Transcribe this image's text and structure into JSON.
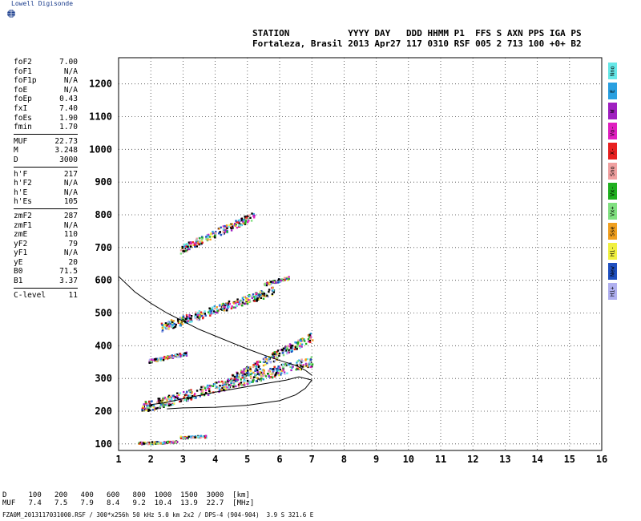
{
  "logo": {
    "text": "Lowell Digisonde",
    "icon": "globe-icon",
    "color": "#1a3c8c"
  },
  "header": {
    "line1": "STATION           YYYY DAY   DDD HHMM P1  FFS S AXN PPS IGA PS",
    "line2": "Fortaleza, Brasil 2013 Apr27 117 0310 RSF 005 2 713 100 +0+ B2"
  },
  "params": {
    "group1": [
      {
        "label": "foF2",
        "value": "7.00"
      },
      {
        "label": "foF1",
        "value": "N/A"
      },
      {
        "label": "foF1p",
        "value": "N/A"
      },
      {
        "label": "foE",
        "value": "N/A"
      },
      {
        "label": "foEp",
        "value": "0.43"
      },
      {
        "label": "fxI",
        "value": "7.40"
      },
      {
        "label": "foEs",
        "value": "1.90"
      },
      {
        "label": "fmin",
        "value": "1.70"
      }
    ],
    "group2": [
      {
        "label": "MUF",
        "value": "22.73"
      },
      {
        "label": "M",
        "value": "3.248"
      },
      {
        "label": "D",
        "value": "3000"
      }
    ],
    "group3": [
      {
        "label": "h'F",
        "value": "217"
      },
      {
        "label": "h'F2",
        "value": "N/A"
      },
      {
        "label": "h'E",
        "value": "N/A"
      },
      {
        "label": "h'Es",
        "value": "105"
      }
    ],
    "group4": [
      {
        "label": "zmF2",
        "value": "287"
      },
      {
        "label": "zmF1",
        "value": "N/A"
      },
      {
        "label": "zmE",
        "value": "110"
      },
      {
        "label": "yF2",
        "value": "79"
      },
      {
        "label": "yF1",
        "value": "N/A"
      },
      {
        "label": "yE",
        "value": "20"
      },
      {
        "label": "B0",
        "value": "71.5"
      },
      {
        "label": "B1",
        "value": "3.37"
      }
    ],
    "group5": [
      {
        "label": "C-level",
        "value": "11"
      }
    ]
  },
  "legend": [
    {
      "label": "Nno",
      "color": "#66e8e8"
    },
    {
      "label": "E",
      "color": "#2aa0e0"
    },
    {
      "label": "W",
      "color": "#a020c0"
    },
    {
      "label": "Vo-",
      "color": "#e020c0"
    },
    {
      "label": "X-",
      "color": "#e82020"
    },
    {
      "label": "Sno",
      "color": "#f0a0a0"
    },
    {
      "label": "Vx-",
      "color": "#20b020"
    },
    {
      "label": "Vx+",
      "color": "#80e080"
    },
    {
      "label": "Sse",
      "color": "#f0a020"
    },
    {
      "label": "Hi-",
      "color": "#f0f040"
    },
    {
      "label": "New",
      "color": "#2050c0"
    },
    {
      "label": "Hi+",
      "color": "#b0b0f0"
    }
  ],
  "bottom": {
    "line1": "D     100   200   400   600   800  1000  1500  3000  [km]",
    "line2": "MUF   7.4   7.5   7.9   8.4   9.2  10.4  13.9  22.7  [MHz]"
  },
  "footer": "FZA0M_2013117031000.RSF / 300*x256h 50 kHz 5.0 km 2x2 / DPS-4 (904-904)  3.9 S 321.6 E",
  "chart_data": {
    "type": "scatter",
    "xlim": [
      1,
      16
    ],
    "ylim": [
      80,
      1280
    ],
    "xticks": [
      1,
      2,
      3,
      4,
      5,
      6,
      7,
      8,
      9,
      10,
      11,
      12,
      13,
      14,
      15,
      16
    ],
    "yticks": [
      100,
      200,
      300,
      400,
      500,
      600,
      700,
      800,
      900,
      1000,
      1100,
      1200
    ],
    "grid": true,
    "profile_curve": [
      [
        1.0,
        612
      ],
      [
        1.5,
        565
      ],
      [
        2.0,
        530
      ],
      [
        2.5,
        500
      ],
      [
        3.0,
        475
      ],
      [
        3.5,
        450
      ],
      [
        4.0,
        430
      ],
      [
        4.5,
        410
      ],
      [
        5.0,
        390
      ],
      [
        5.5,
        372
      ],
      [
        6.0,
        355
      ],
      [
        6.5,
        340
      ],
      [
        6.8,
        325
      ],
      [
        7.0,
        310
      ]
    ],
    "lower_trace": [
      [
        2.5,
        207
      ],
      [
        3.0,
        210
      ],
      [
        4.0,
        212
      ],
      [
        5.0,
        218
      ],
      [
        6.0,
        232
      ],
      [
        6.5,
        250
      ],
      [
        6.8,
        270
      ],
      [
        7.0,
        295
      ],
      [
        6.6,
        305
      ],
      [
        6.2,
        295
      ],
      [
        5.6,
        285
      ],
      [
        5.0,
        275
      ],
      [
        4.0,
        258
      ],
      [
        3.0,
        238
      ],
      [
        2.4,
        225
      ],
      [
        2.0,
        220
      ]
    ],
    "traces": [
      {
        "name": "Es",
        "x0": 1.6,
        "x1": 2.8,
        "y0": 104,
        "y1": 108
      },
      {
        "name": "Es2",
        "x0": 2.9,
        "x1": 3.7,
        "y0": 122,
        "y1": 125
      },
      {
        "name": "F",
        "x0": 1.7,
        "x1": 7.0,
        "y0": 213,
        "y1": 355
      },
      {
        "name": "F-upper",
        "x0": 4.5,
        "x1": 7.0,
        "y0": 300,
        "y1": 430
      },
      {
        "name": "F-mid",
        "x0": 1.9,
        "x1": 3.1,
        "y0": 355,
        "y1": 378
      },
      {
        "name": "2F",
        "x0": 2.3,
        "x1": 5.8,
        "y0": 458,
        "y1": 570
      },
      {
        "name": "2F-top",
        "x0": 5.5,
        "x1": 6.3,
        "y0": 590,
        "y1": 610
      },
      {
        "name": "3F",
        "x0": 2.9,
        "x1": 5.2,
        "y0": 695,
        "y1": 800
      }
    ]
  }
}
